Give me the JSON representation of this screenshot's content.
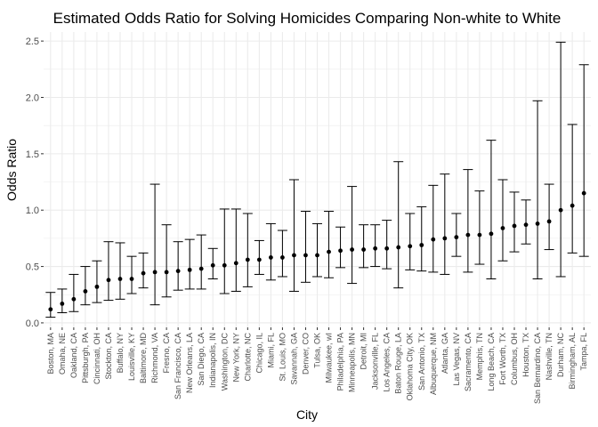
{
  "chart_data": {
    "type": "scatter",
    "title": "Estimated Odds Ratio for Solving Homicides Comparing Non-white to White",
    "xlabel": "City",
    "ylabel": "Odds Ratio",
    "ylim": [
      -0.04,
      2.58
    ],
    "yticks": [
      0.0,
      0.5,
      1.0,
      1.5,
      2.0,
      2.5
    ],
    "ytick_labels": [
      "0.0",
      "0.5",
      "1.0",
      "1.5",
      "2.0",
      "2.5"
    ],
    "grid": true,
    "error_bars": true,
    "colors": {
      "point": "#000000",
      "grid": "#ebebeb",
      "tick_text": "#4d4d4d"
    },
    "points": [
      {
        "city": "Boston, MA",
        "or": 0.12,
        "low": 0.05,
        "high": 0.27
      },
      {
        "city": "Omaha, NE",
        "or": 0.17,
        "low": 0.09,
        "high": 0.3
      },
      {
        "city": "Oakland, CA",
        "or": 0.21,
        "low": 0.1,
        "high": 0.43
      },
      {
        "city": "Pittsburgh, PA",
        "or": 0.28,
        "low": 0.16,
        "high": 0.5
      },
      {
        "city": "Cincinnati, OH",
        "or": 0.32,
        "low": 0.18,
        "high": 0.55
      },
      {
        "city": "Stockton, CA",
        "or": 0.38,
        "low": 0.2,
        "high": 0.72
      },
      {
        "city": "Buffalo, NY",
        "or": 0.39,
        "low": 0.21,
        "high": 0.71
      },
      {
        "city": "Louisville, KY",
        "or": 0.39,
        "low": 0.26,
        "high": 0.59
      },
      {
        "city": "Baltimore, MD",
        "or": 0.44,
        "low": 0.31,
        "high": 0.62
      },
      {
        "city": "Richmond, VA",
        "or": 0.45,
        "low": 0.16,
        "high": 1.23
      },
      {
        "city": "Fresno, CA",
        "or": 0.45,
        "low": 0.23,
        "high": 0.87
      },
      {
        "city": "San Francisco, CA",
        "or": 0.46,
        "low": 0.29,
        "high": 0.72
      },
      {
        "city": "New Orleans, LA",
        "or": 0.47,
        "low": 0.3,
        "high": 0.74
      },
      {
        "city": "San Diego, CA",
        "or": 0.48,
        "low": 0.3,
        "high": 0.78
      },
      {
        "city": "Indianapolis, IN",
        "or": 0.51,
        "low": 0.39,
        "high": 0.66
      },
      {
        "city": "Washington, DC",
        "or": 0.51,
        "low": 0.26,
        "high": 1.01
      },
      {
        "city": "New York, NY",
        "or": 0.53,
        "low": 0.28,
        "high": 1.01
      },
      {
        "city": "Charlotte, NC",
        "or": 0.56,
        "low": 0.32,
        "high": 0.97
      },
      {
        "city": "Chicago, IL",
        "or": 0.56,
        "low": 0.43,
        "high": 0.73
      },
      {
        "city": "Miami, FL",
        "or": 0.58,
        "low": 0.38,
        "high": 0.88
      },
      {
        "city": "St. Louis, MO",
        "or": 0.58,
        "low": 0.41,
        "high": 0.82
      },
      {
        "city": "Savannah, GA",
        "or": 0.6,
        "low": 0.28,
        "high": 1.27
      },
      {
        "city": "Denver, CO",
        "or": 0.6,
        "low": 0.36,
        "high": 0.99
      },
      {
        "city": "Tulsa, OK",
        "or": 0.6,
        "low": 0.41,
        "high": 0.88
      },
      {
        "city": "Milwaukee, wI",
        "or": 0.63,
        "low": 0.4,
        "high": 0.99
      },
      {
        "city": "Philadelphia, PA",
        "or": 0.64,
        "low": 0.49,
        "high": 0.85
      },
      {
        "city": "Minneapolis, MN",
        "or": 0.65,
        "low": 0.35,
        "high": 1.21
      },
      {
        "city": "Detroit, MI",
        "or": 0.65,
        "low": 0.49,
        "high": 0.87
      },
      {
        "city": "Jacksonville, FL",
        "or": 0.66,
        "low": 0.5,
        "high": 0.87
      },
      {
        "city": "Los Angeles, CA",
        "or": 0.66,
        "low": 0.48,
        "high": 0.91
      },
      {
        "city": "Baton Rouge, LA",
        "or": 0.67,
        "low": 0.31,
        "high": 1.43
      },
      {
        "city": "Oklahoma City, OK",
        "or": 0.68,
        "low": 0.47,
        "high": 0.97
      },
      {
        "city": "San Antonio, TX",
        "or": 0.69,
        "low": 0.46,
        "high": 1.03
      },
      {
        "city": "Albuquerque, NM",
        "or": 0.74,
        "low": 0.45,
        "high": 1.22
      },
      {
        "city": "Atlanta, GA",
        "or": 0.75,
        "low": 0.43,
        "high": 1.32
      },
      {
        "city": "Las Vegas, NV",
        "or": 0.76,
        "low": 0.59,
        "high": 0.97
      },
      {
        "city": "Sacramento, CA",
        "or": 0.78,
        "low": 0.45,
        "high": 1.36
      },
      {
        "city": "Memphis, TN",
        "or": 0.78,
        "low": 0.52,
        "high": 1.17
      },
      {
        "city": "Long Beach, CA",
        "or": 0.79,
        "low": 0.39,
        "high": 1.62
      },
      {
        "city": "Fort Worth, TX",
        "or": 0.84,
        "low": 0.55,
        "high": 1.27
      },
      {
        "city": "Columbus, OH",
        "or": 0.86,
        "low": 0.63,
        "high": 1.16
      },
      {
        "city": "Houston, TX",
        "or": 0.87,
        "low": 0.7,
        "high": 1.09
      },
      {
        "city": "San Bernardino, CA",
        "or": 0.88,
        "low": 0.39,
        "high": 1.97
      },
      {
        "city": "Nashville, TN",
        "or": 0.9,
        "low": 0.65,
        "high": 1.23
      },
      {
        "city": "Durham, NC",
        "or": 1.0,
        "low": 0.41,
        "high": 2.49
      },
      {
        "city": "Birmingham, AL",
        "or": 1.04,
        "low": 0.62,
        "high": 1.76
      },
      {
        "city": "Tampa, FL",
        "or": 1.15,
        "low": 0.59,
        "high": 2.29
      }
    ]
  }
}
